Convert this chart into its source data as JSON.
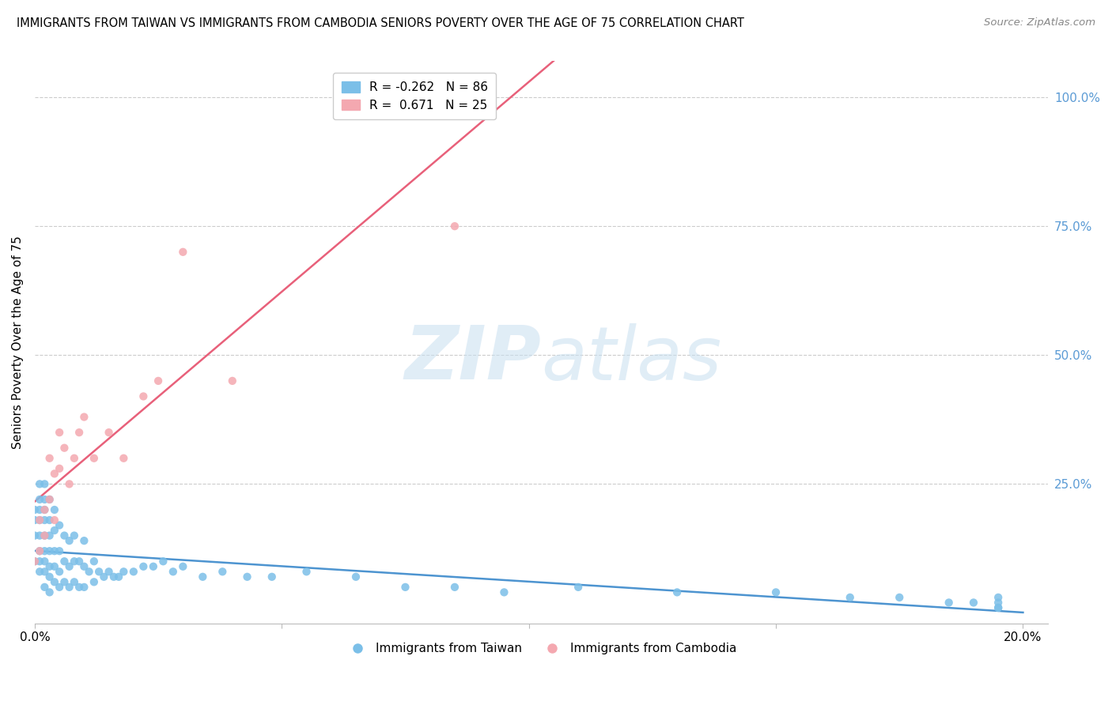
{
  "title": "IMMIGRANTS FROM TAIWAN VS IMMIGRANTS FROM CAMBODIA SENIORS POVERTY OVER THE AGE OF 75 CORRELATION CHART",
  "source": "Source: ZipAtlas.com",
  "ylabel": "Seniors Poverty Over the Age of 75",
  "xlim": [
    0.0,
    0.2
  ],
  "ylim": [
    0.0,
    1.05
  ],
  "taiwan_R": -0.262,
  "taiwan_N": 86,
  "cambodia_R": 0.671,
  "cambodia_N": 25,
  "taiwan_color": "#7bbfe8",
  "cambodia_color": "#f4a8b0",
  "taiwan_line_color": "#4d94d0",
  "cambodia_line_color": "#e8607a",
  "watermark": "ZIPAtlas",
  "taiwan_x": [
    0.0,
    0.0,
    0.0,
    0.0,
    0.001,
    0.001,
    0.001,
    0.001,
    0.001,
    0.001,
    0.001,
    0.001,
    0.002,
    0.002,
    0.002,
    0.002,
    0.002,
    0.002,
    0.002,
    0.002,
    0.002,
    0.003,
    0.003,
    0.003,
    0.003,
    0.003,
    0.003,
    0.003,
    0.004,
    0.004,
    0.004,
    0.004,
    0.004,
    0.005,
    0.005,
    0.005,
    0.005,
    0.006,
    0.006,
    0.006,
    0.007,
    0.007,
    0.007,
    0.008,
    0.008,
    0.008,
    0.009,
    0.009,
    0.01,
    0.01,
    0.01,
    0.011,
    0.012,
    0.012,
    0.013,
    0.014,
    0.015,
    0.016,
    0.017,
    0.018,
    0.02,
    0.022,
    0.024,
    0.026,
    0.028,
    0.03,
    0.034,
    0.038,
    0.043,
    0.048,
    0.055,
    0.065,
    0.075,
    0.085,
    0.095,
    0.11,
    0.13,
    0.15,
    0.165,
    0.175,
    0.185,
    0.19,
    0.195,
    0.195,
    0.195,
    0.195
  ],
  "taiwan_y": [
    0.1,
    0.15,
    0.18,
    0.2,
    0.08,
    0.1,
    0.12,
    0.15,
    0.18,
    0.2,
    0.22,
    0.25,
    0.05,
    0.08,
    0.1,
    0.12,
    0.15,
    0.18,
    0.2,
    0.22,
    0.25,
    0.04,
    0.07,
    0.09,
    0.12,
    0.15,
    0.18,
    0.22,
    0.06,
    0.09,
    0.12,
    0.16,
    0.2,
    0.05,
    0.08,
    0.12,
    0.17,
    0.06,
    0.1,
    0.15,
    0.05,
    0.09,
    0.14,
    0.06,
    0.1,
    0.15,
    0.05,
    0.1,
    0.05,
    0.09,
    0.14,
    0.08,
    0.06,
    0.1,
    0.08,
    0.07,
    0.08,
    0.07,
    0.07,
    0.08,
    0.08,
    0.09,
    0.09,
    0.1,
    0.08,
    0.09,
    0.07,
    0.08,
    0.07,
    0.07,
    0.08,
    0.07,
    0.05,
    0.05,
    0.04,
    0.05,
    0.04,
    0.04,
    0.03,
    0.03,
    0.02,
    0.02,
    0.03,
    0.02,
    0.01,
    0.01
  ],
  "cambodia_x": [
    0.0,
    0.001,
    0.001,
    0.002,
    0.002,
    0.003,
    0.003,
    0.004,
    0.004,
    0.005,
    0.005,
    0.006,
    0.007,
    0.008,
    0.009,
    0.01,
    0.012,
    0.015,
    0.018,
    0.022,
    0.025,
    0.03,
    0.04,
    0.085,
    0.085
  ],
  "cambodia_y": [
    0.1,
    0.12,
    0.18,
    0.15,
    0.2,
    0.22,
    0.3,
    0.18,
    0.27,
    0.28,
    0.35,
    0.32,
    0.25,
    0.3,
    0.35,
    0.38,
    0.3,
    0.35,
    0.3,
    0.42,
    0.45,
    0.7,
    0.45,
    0.75,
    1.0
  ]
}
